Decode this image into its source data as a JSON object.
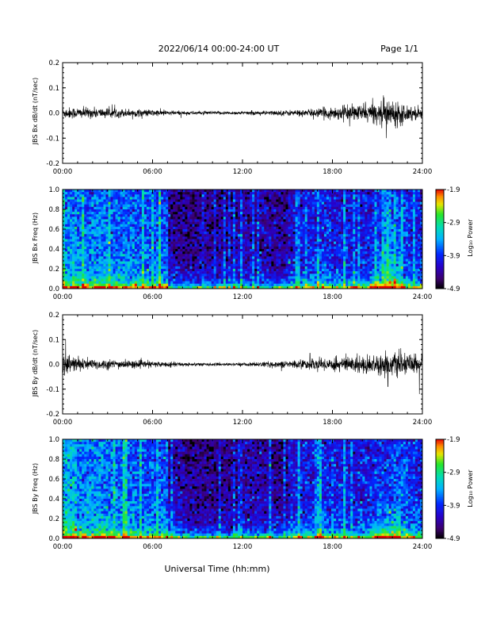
{
  "header": {
    "title": "2022/06/14  00:00-24:00 UT",
    "page": "Page 1/1"
  },
  "x_axis": {
    "label": "Universal Time (hh:mm)",
    "range_hours": [
      0,
      24
    ],
    "ticks": [
      "00:00",
      "06:00",
      "12:00",
      "18:00",
      "24:00"
    ]
  },
  "colorbar": {
    "label": "Log₁₀ Power",
    "ticks": [
      "-1.9",
      "-2.9",
      "-3.9",
      "-4.9"
    ],
    "range": [
      -4.9,
      -1.9
    ]
  },
  "chart_data": [
    {
      "type": "line",
      "id": "bx-dbdt",
      "ylabel": "JBS Bx dB/dt (nT/sec)",
      "ylim": [
        -0.2,
        0.2
      ],
      "yticks": [
        "0.2",
        "0.1",
        "0.0",
        "-0.1",
        "-0.2"
      ],
      "x_hours": [
        0,
        1,
        2,
        3,
        4,
        5,
        6,
        7,
        8,
        9,
        10,
        11,
        12,
        13,
        14,
        15,
        16,
        17,
        18,
        19,
        20,
        21,
        22,
        23,
        24
      ],
      "envelope_amplitude": [
        0.02,
        0.02,
        0.018,
        0.017,
        0.015,
        0.013,
        0.012,
        0.009,
        0.007,
        0.006,
        0.006,
        0.006,
        0.006,
        0.007,
        0.008,
        0.01,
        0.012,
        0.015,
        0.022,
        0.025,
        0.03,
        0.035,
        0.05,
        0.028,
        0.02
      ],
      "peaks": [
        {
          "x": 21.4,
          "y": 0.07
        },
        {
          "x": 21.6,
          "y": -0.1
        },
        {
          "x": 20.2,
          "y": 0.045
        },
        {
          "x": 18.7,
          "y": 0.03
        }
      ]
    },
    {
      "type": "heatmap",
      "id": "bx-spectrogram",
      "ylabel": "JBS Bx Freq (Hz)",
      "ylim": [
        0.0,
        1.0
      ],
      "yticks": [
        "1.0",
        "0.8",
        "0.6",
        "0.4",
        "0.2",
        "0.0"
      ],
      "colorscale": "rainbow",
      "zlim": [
        -4.9,
        -1.9
      ],
      "background_log_power_by_hour": [
        -3.6,
        -3.7,
        -3.6,
        -3.7,
        -3.7,
        -3.8,
        -3.8,
        -4.5,
        -4.5,
        -4.5,
        -4.5,
        -4.4,
        -4.4,
        -4.4,
        -4.5,
        -4.2,
        -4.1,
        -4.0,
        -4.1,
        -4.1,
        -4.1,
        -4.0,
        -3.9,
        -4.0
      ]
    },
    {
      "type": "line",
      "id": "by-dbdt",
      "ylabel": "JBS By dB/dt (nT/sec)",
      "ylim": [
        -0.2,
        0.2
      ],
      "yticks": [
        "0.2",
        "0.1",
        "0.0",
        "-0.1",
        "-0.2"
      ],
      "x_hours": [
        0,
        1,
        2,
        3,
        4,
        5,
        6,
        7,
        8,
        9,
        10,
        11,
        12,
        13,
        14,
        15,
        16,
        17,
        18,
        19,
        20,
        21,
        22,
        23,
        24
      ],
      "envelope_amplitude": [
        0.04,
        0.025,
        0.02,
        0.017,
        0.015,
        0.013,
        0.011,
        0.009,
        0.007,
        0.006,
        0.005,
        0.005,
        0.006,
        0.008,
        0.01,
        0.013,
        0.016,
        0.02,
        0.025,
        0.03,
        0.032,
        0.035,
        0.04,
        0.035,
        0.035
      ],
      "peaks": [
        {
          "x": 0.2,
          "y": 0.1
        },
        {
          "x": 23.8,
          "y": -0.12
        },
        {
          "x": 21.7,
          "y": -0.09
        },
        {
          "x": 16.5,
          "y": 0.045
        }
      ]
    },
    {
      "type": "heatmap",
      "id": "by-spectrogram",
      "ylabel": "JBS By Freq (Hz)",
      "ylim": [
        0.0,
        1.0
      ],
      "yticks": [
        "1.0",
        "0.8",
        "0.6",
        "0.4",
        "0.2",
        "0.0"
      ],
      "colorscale": "rainbow",
      "zlim": [
        -4.9,
        -1.9
      ],
      "background_log_power_by_hour": [
        -3.4,
        -3.6,
        -3.6,
        -3.7,
        -3.7,
        -3.8,
        -3.8,
        -4.4,
        -4.5,
        -4.5,
        -4.5,
        -4.5,
        -4.4,
        -4.4,
        -4.5,
        -4.1,
        -4.1,
        -4.0,
        -4.1,
        -4.1,
        -4.1,
        -4.0,
        -3.8,
        -4.0
      ]
    }
  ]
}
